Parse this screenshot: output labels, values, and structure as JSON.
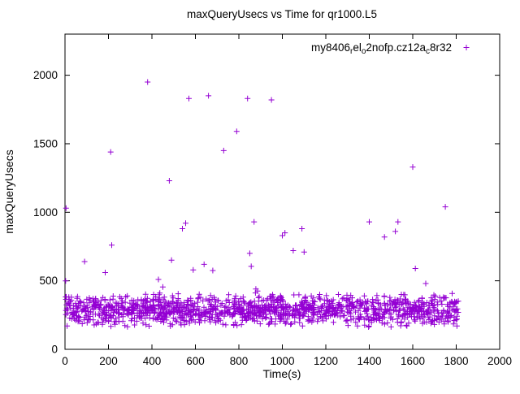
{
  "title": "maxQueryUsecs vs Time for qr1000.L5",
  "legend": {
    "label": "my8406_rel_o2nofp.cz12a_c8r32",
    "display_segments": [
      {
        "t": "my8406",
        "sub": false
      },
      {
        "t": "r",
        "sub": true
      },
      {
        "t": "el",
        "sub": false
      },
      {
        "t": "o",
        "sub": true
      },
      {
        "t": "2nofp.cz12a",
        "sub": false
      },
      {
        "t": "c",
        "sub": true
      },
      {
        "t": "8r32",
        "sub": false
      }
    ],
    "marker": "plus",
    "position": "top-right-inside"
  },
  "chart_data": {
    "type": "scatter",
    "title": "maxQueryUsecs vs Time for qr1000.L5",
    "xlabel": "Time(s)",
    "ylabel": "maxQueryUsecs",
    "xlim": [
      0,
      2000
    ],
    "ylim": [
      0,
      2300
    ],
    "x_ticks": [
      0,
      200,
      400,
      600,
      800,
      1000,
      1200,
      1400,
      1600,
      1800,
      2000
    ],
    "y_ticks": [
      0,
      500,
      1000,
      1500,
      2000
    ],
    "grid": false,
    "legend_position": "top-right-inside",
    "series": [
      {
        "name": "my8406_rel_o2nofp.cz12a_c8r32",
        "color": "#9400D3",
        "marker": "plus",
        "outlier_points": [
          [
            3,
            500
          ],
          [
            5,
            1030
          ],
          [
            90,
            640
          ],
          [
            185,
            560
          ],
          [
            210,
            1440
          ],
          [
            215,
            760
          ],
          [
            380,
            1950
          ],
          [
            430,
            510
          ],
          [
            450,
            455
          ],
          [
            480,
            1230
          ],
          [
            490,
            650
          ],
          [
            540,
            880
          ],
          [
            555,
            920
          ],
          [
            570,
            1830
          ],
          [
            590,
            580
          ],
          [
            640,
            620
          ],
          [
            660,
            1850
          ],
          [
            680,
            575
          ],
          [
            730,
            1450
          ],
          [
            790,
            1590
          ],
          [
            840,
            1830
          ],
          [
            850,
            700
          ],
          [
            857,
            605
          ],
          [
            870,
            930
          ],
          [
            878,
            440
          ],
          [
            886,
            425
          ],
          [
            950,
            1820
          ],
          [
            1000,
            830
          ],
          [
            1012,
            850
          ],
          [
            1050,
            720
          ],
          [
            1090,
            880
          ],
          [
            1100,
            710
          ],
          [
            1400,
            930
          ],
          [
            1470,
            820
          ],
          [
            1520,
            860
          ],
          [
            1532,
            930
          ],
          [
            1600,
            1330
          ],
          [
            1612,
            590
          ],
          [
            1660,
            480
          ],
          [
            1750,
            1040
          ]
        ],
        "dense_band": {
          "description": "dense noisy band of per-interval samples",
          "x_min": 0,
          "x_max": 1810,
          "y_min": 155,
          "y_max": 415,
          "y_center": 285,
          "count": 1400,
          "seed": 42
        }
      }
    ]
  }
}
